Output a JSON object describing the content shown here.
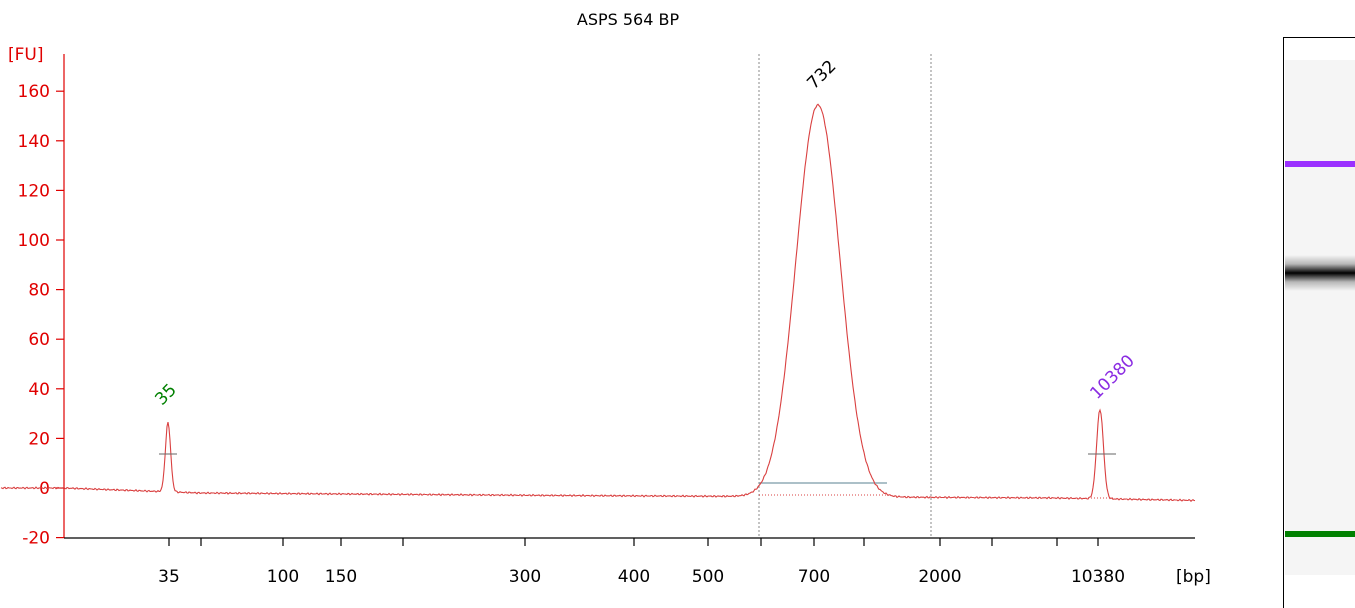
{
  "chart_data": {
    "type": "line",
    "title": "ASPS 564 BP",
    "ylabel": "[FU]",
    "xlabel": "[bp]",
    "ylim": [
      -20,
      170
    ],
    "yticks": [
      -20,
      0,
      20,
      40,
      60,
      80,
      100,
      120,
      140,
      160
    ],
    "xtick_labels": [
      "35",
      "100",
      "150",
      "300",
      "400",
      "500",
      "700",
      "2000",
      "10380"
    ],
    "grid": false,
    "peaks": [
      {
        "label": "35",
        "x": "35",
        "height": 28,
        "color": "#008000"
      },
      {
        "label": "732",
        "x": "732",
        "height": 156,
        "color": "#000000"
      },
      {
        "label": "10380",
        "x": "10380",
        "height": 32,
        "color": "#8a2be2"
      }
    ],
    "series": [
      {
        "color": "#d94040",
        "baseline": [
          [
            1,
            0
          ],
          [
            200,
            -2
          ],
          [
            550,
            -3
          ],
          [
            1050,
            -4
          ],
          [
            1195,
            -5
          ]
        ]
      }
    ],
    "region_markers": [
      600,
      950
    ]
  },
  "gel": {
    "bands": [
      {
        "name": "upper-marker",
        "color": "#9b30ff"
      },
      {
        "name": "sample",
        "color": "#000000"
      },
      {
        "name": "lower-marker",
        "color": "#008000"
      }
    ]
  }
}
